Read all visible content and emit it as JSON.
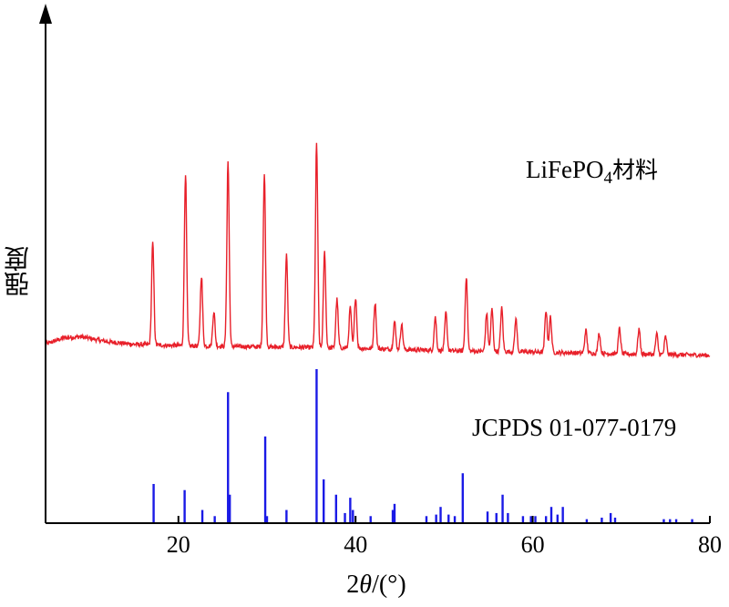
{
  "chart_data": {
    "type": "line",
    "title": "",
    "xlabel_prefix": "2",
    "xlabel_symbol": "θ",
    "xlabel_suffix": "/(°)",
    "ylabel": "强度",
    "xlim": [
      5,
      80
    ],
    "xticks": [
      20,
      40,
      60,
      80
    ],
    "colors": {
      "measured": "#e8202a",
      "reference": "#1a1ae6",
      "axis": "#000000"
    },
    "series": [
      {
        "name": "LiFePO4材料",
        "label_main": "LiFePO",
        "label_sub": "4",
        "label_tail": "材料",
        "kind": "line",
        "baseline": [
          [
            5,
            0.23
          ],
          [
            7,
            0.28
          ],
          [
            9,
            0.29
          ],
          [
            12,
            0.25
          ],
          [
            15,
            0.23
          ],
          [
            20,
            0.22
          ],
          [
            30,
            0.21
          ],
          [
            40,
            0.2
          ],
          [
            50,
            0.18
          ],
          [
            60,
            0.17
          ],
          [
            70,
            0.155
          ],
          [
            80,
            0.145
          ]
        ],
        "peaks": [
          [
            17.1,
            0.8
          ],
          [
            20.8,
            1.35
          ],
          [
            22.6,
            0.55
          ],
          [
            24.0,
            0.27
          ],
          [
            25.6,
            1.45
          ],
          [
            29.7,
            1.35
          ],
          [
            32.2,
            0.72
          ],
          [
            35.6,
            1.6
          ],
          [
            36.5,
            0.75
          ],
          [
            37.9,
            0.38
          ],
          [
            39.4,
            0.32
          ],
          [
            40.0,
            0.4
          ],
          [
            42.2,
            0.36
          ],
          [
            44.4,
            0.22
          ],
          [
            45.2,
            0.2
          ],
          [
            49.0,
            0.26
          ],
          [
            50.2,
            0.3
          ],
          [
            52.5,
            0.58
          ],
          [
            54.8,
            0.3
          ],
          [
            55.4,
            0.33
          ],
          [
            56.5,
            0.34
          ],
          [
            58.1,
            0.26
          ],
          [
            61.5,
            0.33
          ],
          [
            62.0,
            0.28
          ],
          [
            66.0,
            0.18
          ],
          [
            67.5,
            0.16
          ],
          [
            69.8,
            0.2
          ],
          [
            72.0,
            0.2
          ],
          [
            74.0,
            0.16
          ],
          [
            75.0,
            0.14
          ]
        ]
      },
      {
        "name": "JCPDS 01-077-0179",
        "kind": "sticks",
        "data": [
          [
            17.2,
            0.25
          ],
          [
            20.7,
            0.21
          ],
          [
            22.7,
            0.08
          ],
          [
            24.1,
            0.04
          ],
          [
            25.6,
            0.85
          ],
          [
            25.8,
            0.18
          ],
          [
            29.8,
            0.56
          ],
          [
            30.0,
            0.04
          ],
          [
            32.2,
            0.08
          ],
          [
            35.6,
            1.0
          ],
          [
            36.4,
            0.28
          ],
          [
            37.8,
            0.18
          ],
          [
            38.8,
            0.06
          ],
          [
            39.4,
            0.16
          ],
          [
            39.7,
            0.08
          ],
          [
            41.7,
            0.04
          ],
          [
            44.2,
            0.08
          ],
          [
            44.4,
            0.12
          ],
          [
            48.0,
            0.04
          ],
          [
            49.1,
            0.05
          ],
          [
            49.6,
            0.1
          ],
          [
            50.5,
            0.05
          ],
          [
            51.2,
            0.04
          ],
          [
            52.1,
            0.32
          ],
          [
            54.9,
            0.07
          ],
          [
            55.9,
            0.06
          ],
          [
            56.6,
            0.18
          ],
          [
            57.2,
            0.06
          ],
          [
            58.9,
            0.04
          ],
          [
            59.8,
            0.04
          ],
          [
            60.3,
            0.04
          ],
          [
            61.5,
            0.04
          ],
          [
            62.1,
            0.1
          ],
          [
            62.8,
            0.05
          ],
          [
            63.4,
            0.1
          ],
          [
            66.1,
            0.02
          ],
          [
            67.8,
            0.03
          ],
          [
            68.8,
            0.06
          ],
          [
            69.3,
            0.03
          ],
          [
            74.8,
            0.02
          ],
          [
            75.5,
            0.02
          ],
          [
            76.2,
            0.02
          ],
          [
            78.0,
            0.02
          ]
        ]
      }
    ]
  }
}
